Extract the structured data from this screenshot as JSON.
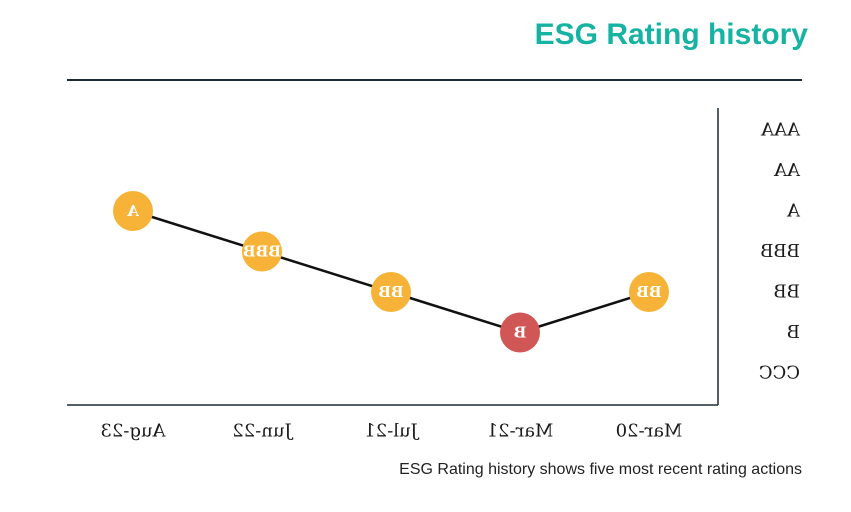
{
  "title": "ESG Rating history",
  "caption": "ESG Rating history shows five most recent rating actions",
  "chart_data": {
    "type": "line",
    "title": "ESG Rating history",
    "xlabel": "",
    "ylabel": "",
    "categories": [
      "Aug-23",
      "Jun-22",
      "Jul-21",
      "Mar-21",
      "Mar-20"
    ],
    "y_categories": [
      "AAA",
      "AA",
      "A",
      "BBB",
      "BB",
      "B",
      "CCC"
    ],
    "values": [
      "A",
      "BBB",
      "BB",
      "B",
      "BB"
    ],
    "point_colors": [
      "#f7b338",
      "#f7b338",
      "#f7b338",
      "#d15656",
      "#f7b338"
    ],
    "line_color": "#111111",
    "y_axis_position": "right",
    "grid": false,
    "mirrored": true
  }
}
